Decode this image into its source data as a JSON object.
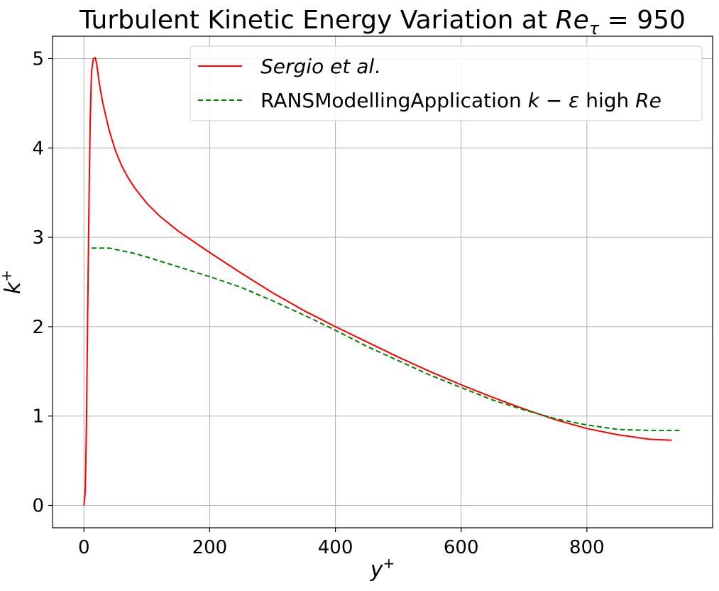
{
  "chart_data": {
    "type": "line",
    "title": "Turbulent Kinetic Energy Variation at Re_τ = 950",
    "title_parts": {
      "prefix": "Turbulent Kinetic Energy Variation at ",
      "re": "Re",
      "tau": "τ",
      "suffix": " = 950"
    },
    "xlabel": "y⁺",
    "ylabel": "k⁺",
    "xlabel_parts": {
      "base": "y",
      "sup": "+"
    },
    "ylabel_parts": {
      "base": "k",
      "sup": "+"
    },
    "xlim": [
      -50,
      1000
    ],
    "ylim": [
      -0.25,
      5.25
    ],
    "xticks": [
      0,
      200,
      400,
      600,
      800
    ],
    "yticks": [
      0,
      1,
      2,
      3,
      4,
      5
    ],
    "xtick_labels": [
      "0",
      "200",
      "400",
      "600",
      "800"
    ],
    "ytick_labels": [
      "0",
      "1",
      "2",
      "3",
      "4",
      "5"
    ],
    "grid": true,
    "legend_position": "top-right",
    "series": [
      {
        "name": "Sergio et al.",
        "color": "#ff0000",
        "style": "solid",
        "x": [
          0,
          2,
          4,
          6,
          8,
          10,
          12,
          15,
          18,
          20,
          25,
          30,
          40,
          50,
          60,
          70,
          80,
          100,
          120,
          150,
          200,
          250,
          300,
          350,
          400,
          450,
          500,
          550,
          600,
          650,
          700,
          750,
          800,
          850,
          900,
          935
        ],
        "y": [
          0.0,
          0.15,
          0.9,
          2.2,
          3.4,
          4.3,
          4.85,
          5.0,
          5.01,
          4.95,
          4.7,
          4.5,
          4.2,
          3.97,
          3.8,
          3.67,
          3.56,
          3.38,
          3.24,
          3.07,
          2.83,
          2.6,
          2.38,
          2.18,
          2.0,
          1.83,
          1.66,
          1.5,
          1.35,
          1.21,
          1.08,
          0.96,
          0.86,
          0.79,
          0.74,
          0.73
        ]
      },
      {
        "name": "RANSModellingApplication k − ε high Re",
        "color": "#008000",
        "style": "dashed",
        "x": [
          12,
          20,
          40,
          60,
          80,
          100,
          150,
          200,
          250,
          300,
          350,
          400,
          450,
          500,
          550,
          600,
          650,
          700,
          750,
          800,
          850,
          900,
          950
        ],
        "y": [
          2.88,
          2.88,
          2.88,
          2.85,
          2.82,
          2.78,
          2.67,
          2.56,
          2.44,
          2.29,
          2.13,
          1.96,
          1.78,
          1.62,
          1.46,
          1.32,
          1.18,
          1.07,
          0.97,
          0.9,
          0.85,
          0.84,
          0.84
        ]
      }
    ],
    "legend": {
      "entries": [
        {
          "label_italic": "Sergio et al.",
          "label_parts": [
            {
              "t": "Sergio et al",
              "i": true
            },
            {
              "t": ".",
              "i": false
            }
          ]
        },
        {
          "label_parts": [
            {
              "t": "RANSModellingApplication ",
              "i": false
            },
            {
              "t": "k",
              "i": true
            },
            {
              "t": " − ",
              "i": false
            },
            {
              "t": "ε",
              "i": true
            },
            {
              "t": " high ",
              "i": false
            },
            {
              "t": "Re",
              "i": true
            }
          ]
        }
      ]
    }
  }
}
